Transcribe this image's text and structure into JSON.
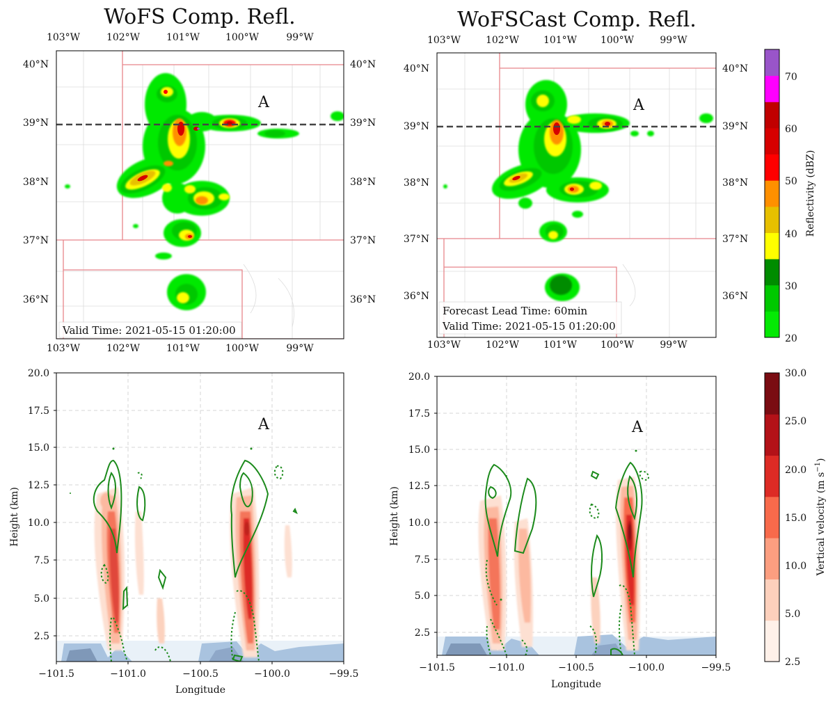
{
  "chart_data": [
    {
      "type": "heatmap",
      "panel": "map-left",
      "title": "WoFS Comp. Refl.",
      "top_ticks": [
        "103°W",
        "102°W",
        "101°W",
        "100°W",
        "99°W"
      ],
      "bottom_ticks": [
        "103°W",
        "102°W",
        "101°W",
        "100°W",
        "99°W"
      ],
      "left_ticks": [
        "40°N",
        "39°N",
        "38°N",
        "37°N",
        "36°N"
      ],
      "right_ticks": [
        "40°N",
        "39°N",
        "38°N",
        "37°N",
        "36°N"
      ],
      "annotation": "A",
      "valid_time": "Valid Time: 2021-05-15 01:20:00",
      "cross_section_lat": "39°N"
    },
    {
      "type": "heatmap",
      "panel": "map-right",
      "title": "WoFSCast Comp. Refl.",
      "top_ticks": [
        "103°W",
        "102°W",
        "101°W",
        "100°W",
        "99°W"
      ],
      "bottom_ticks": [
        "103°W",
        "102°W",
        "101°W",
        "100°W",
        "99°W"
      ],
      "left_ticks": [
        "40°N",
        "39°N",
        "38°N",
        "37°N",
        "36°N"
      ],
      "right_ticks": [
        "40°N",
        "39°N",
        "38°N",
        "37°N",
        "36°N"
      ],
      "annotation": "A",
      "lead_time": "Forecast Lead Time: 60min",
      "valid_time": "Valid Time: 2021-05-15 01:20:00",
      "cross_section_lat": "39°N"
    },
    {
      "type": "heatmap",
      "panel": "cross-left",
      "xlabel": "Longitude",
      "ylabel": "Height (km)",
      "xlim": [
        -101.5,
        -99.5
      ],
      "ylim": [
        0.9,
        20.0
      ],
      "x_ticks": [
        "−101.5",
        "−101.0",
        "−100.5",
        "−100.0",
        "−99.5"
      ],
      "y_ticks": [
        "2.5",
        "5.0",
        "7.5",
        "10.0",
        "12.5",
        "15.0",
        "17.5",
        "20.0"
      ],
      "annotation": "A"
    },
    {
      "type": "heatmap",
      "panel": "cross-right",
      "xlabel": "Longitude",
      "ylabel": "Height (km)",
      "xlim": [
        -101.5,
        -99.5
      ],
      "ylim": [
        0.9,
        20.0
      ],
      "x_ticks": [
        "−101.5",
        "−101.0",
        "−100.5",
        "−100.0",
        "−99.5"
      ],
      "y_ticks": [
        "2.5",
        "5.0",
        "7.5",
        "10.0",
        "12.5",
        "15.0",
        "17.5",
        "20.0"
      ],
      "annotation": "A"
    }
  ],
  "colorbars": {
    "reflectivity": {
      "label": "Reflectivity (dBZ)",
      "ticks": [
        "20",
        "30",
        "40",
        "50",
        "60",
        "70"
      ],
      "bounds": [
        20,
        75
      ],
      "colors": [
        "#04e904",
        "#00c800",
        "#008c00",
        "#ffff00",
        "#e7c000",
        "#ff9000",
        "#ff0000",
        "#d60000",
        "#c00000",
        "#ff00ff",
        "#9955c9"
      ]
    },
    "vertical_velocity": {
      "label_main": "Vertical velocity (m s",
      "label_sup": "−1",
      "label_end": ")",
      "ticks": [
        "2.5",
        "5.0",
        "10.0",
        "15.0",
        "20.0",
        "25.0",
        "30.0"
      ],
      "colors": [
        "#fff1e9",
        "#fdd0bc",
        "#fc9e80",
        "#f86a4b",
        "#dd2b25",
        "#b31218",
        "#7a0c12"
      ]
    }
  }
}
